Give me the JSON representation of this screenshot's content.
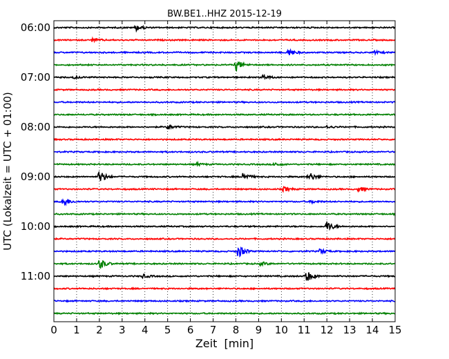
{
  "chart_data": {
    "type": "line",
    "title": "BW.BE1..HHZ 2015-12-19",
    "xlabel": "Zeit  [min]",
    "ylabel": "UTC (Lokalzeit = UTC + 01:00)",
    "xlim": [
      0,
      15
    ],
    "x_ticks": [
      0,
      1,
      2,
      3,
      4,
      5,
      6,
      7,
      8,
      9,
      10,
      11,
      12,
      13,
      14,
      15
    ],
    "y_tick_labels": [
      "06:00",
      "07:00",
      "08:00",
      "09:00",
      "10:00",
      "11:00"
    ],
    "grid": "x-dotted",
    "trace_colors": [
      "#000000",
      "#ff0000",
      "#0000ff",
      "#008000"
    ],
    "trace_minutes": [
      "06:00",
      "06:15",
      "06:30",
      "06:45",
      "07:00",
      "07:15",
      "07:30",
      "07:45",
      "08:00",
      "08:15",
      "08:30",
      "08:45",
      "09:00",
      "09:15",
      "09:30",
      "09:45",
      "10:00",
      "10:15",
      "10:30",
      "10:45",
      "11:00",
      "11:15",
      "11:30",
      "11:45"
    ],
    "events": [
      {
        "trace": 0,
        "x": 3.6,
        "amp": 0.5
      },
      {
        "trace": 1,
        "x": 1.7,
        "amp": 0.3
      },
      {
        "trace": 2,
        "x": 10.3,
        "amp": 0.7
      },
      {
        "trace": 2,
        "x": 14.1,
        "amp": 0.25
      },
      {
        "trace": 3,
        "x": 8.0,
        "amp": 0.9
      },
      {
        "trace": 4,
        "x": 9.2,
        "amp": 0.4
      },
      {
        "trace": 4,
        "x": 0.9,
        "amp": 0.2
      },
      {
        "trace": 8,
        "x": 5.0,
        "amp": 0.4
      },
      {
        "trace": 8,
        "x": 12.0,
        "amp": 0.2
      },
      {
        "trace": 11,
        "x": 6.3,
        "amp": 0.2
      },
      {
        "trace": 11,
        "x": 9.7,
        "amp": 0.3
      },
      {
        "trace": 12,
        "x": 2.0,
        "amp": 1.1
      },
      {
        "trace": 12,
        "x": 8.3,
        "amp": 0.7
      },
      {
        "trace": 12,
        "x": 11.2,
        "amp": 0.8
      },
      {
        "trace": 13,
        "x": 10.1,
        "amp": 0.4
      },
      {
        "trace": 13,
        "x": 13.4,
        "amp": 0.4
      },
      {
        "trace": 14,
        "x": 0.4,
        "amp": 0.8
      },
      {
        "trace": 14,
        "x": 11.3,
        "amp": 0.3
      },
      {
        "trace": 16,
        "x": 12.0,
        "amp": 0.9
      },
      {
        "trace": 18,
        "x": 8.1,
        "amp": 1.1
      },
      {
        "trace": 18,
        "x": 11.7,
        "amp": 0.4
      },
      {
        "trace": 19,
        "x": 2.0,
        "amp": 0.9
      },
      {
        "trace": 19,
        "x": 9.1,
        "amp": 0.3
      },
      {
        "trace": 20,
        "x": 3.9,
        "amp": 0.3
      },
      {
        "trace": 20,
        "x": 11.1,
        "amp": 1.0
      }
    ]
  }
}
